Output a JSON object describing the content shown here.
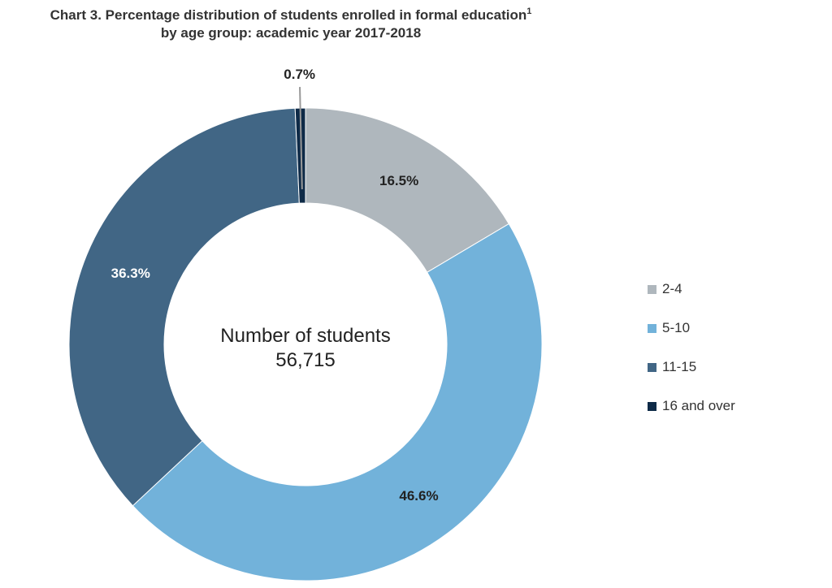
{
  "title": {
    "line1": "Chart 3. Percentage distribution of students enrolled in formal education",
    "footnote": "1",
    "line2": "by age group: academic year 2017-2018"
  },
  "center": {
    "label": "Number of students",
    "value": "56,715"
  },
  "chart_data": {
    "type": "pie",
    "donut": true,
    "categories": [
      "2-4",
      "5-10",
      "11-15",
      "16 and over"
    ],
    "values": [
      16.5,
      46.6,
      36.3,
      0.7
    ],
    "data_labels": [
      "16.5%",
      "46.6%",
      "36.3%",
      "0.7%"
    ],
    "colors": [
      "#afb7bd",
      "#72b2da",
      "#416685",
      "#0e2a47"
    ],
    "label_colors": [
      "#222222",
      "#222222",
      "#ffffff",
      "#222222"
    ],
    "start_angle_deg": 0,
    "direction": "clockwise",
    "legend_position": "right",
    "center_total": 56715
  }
}
